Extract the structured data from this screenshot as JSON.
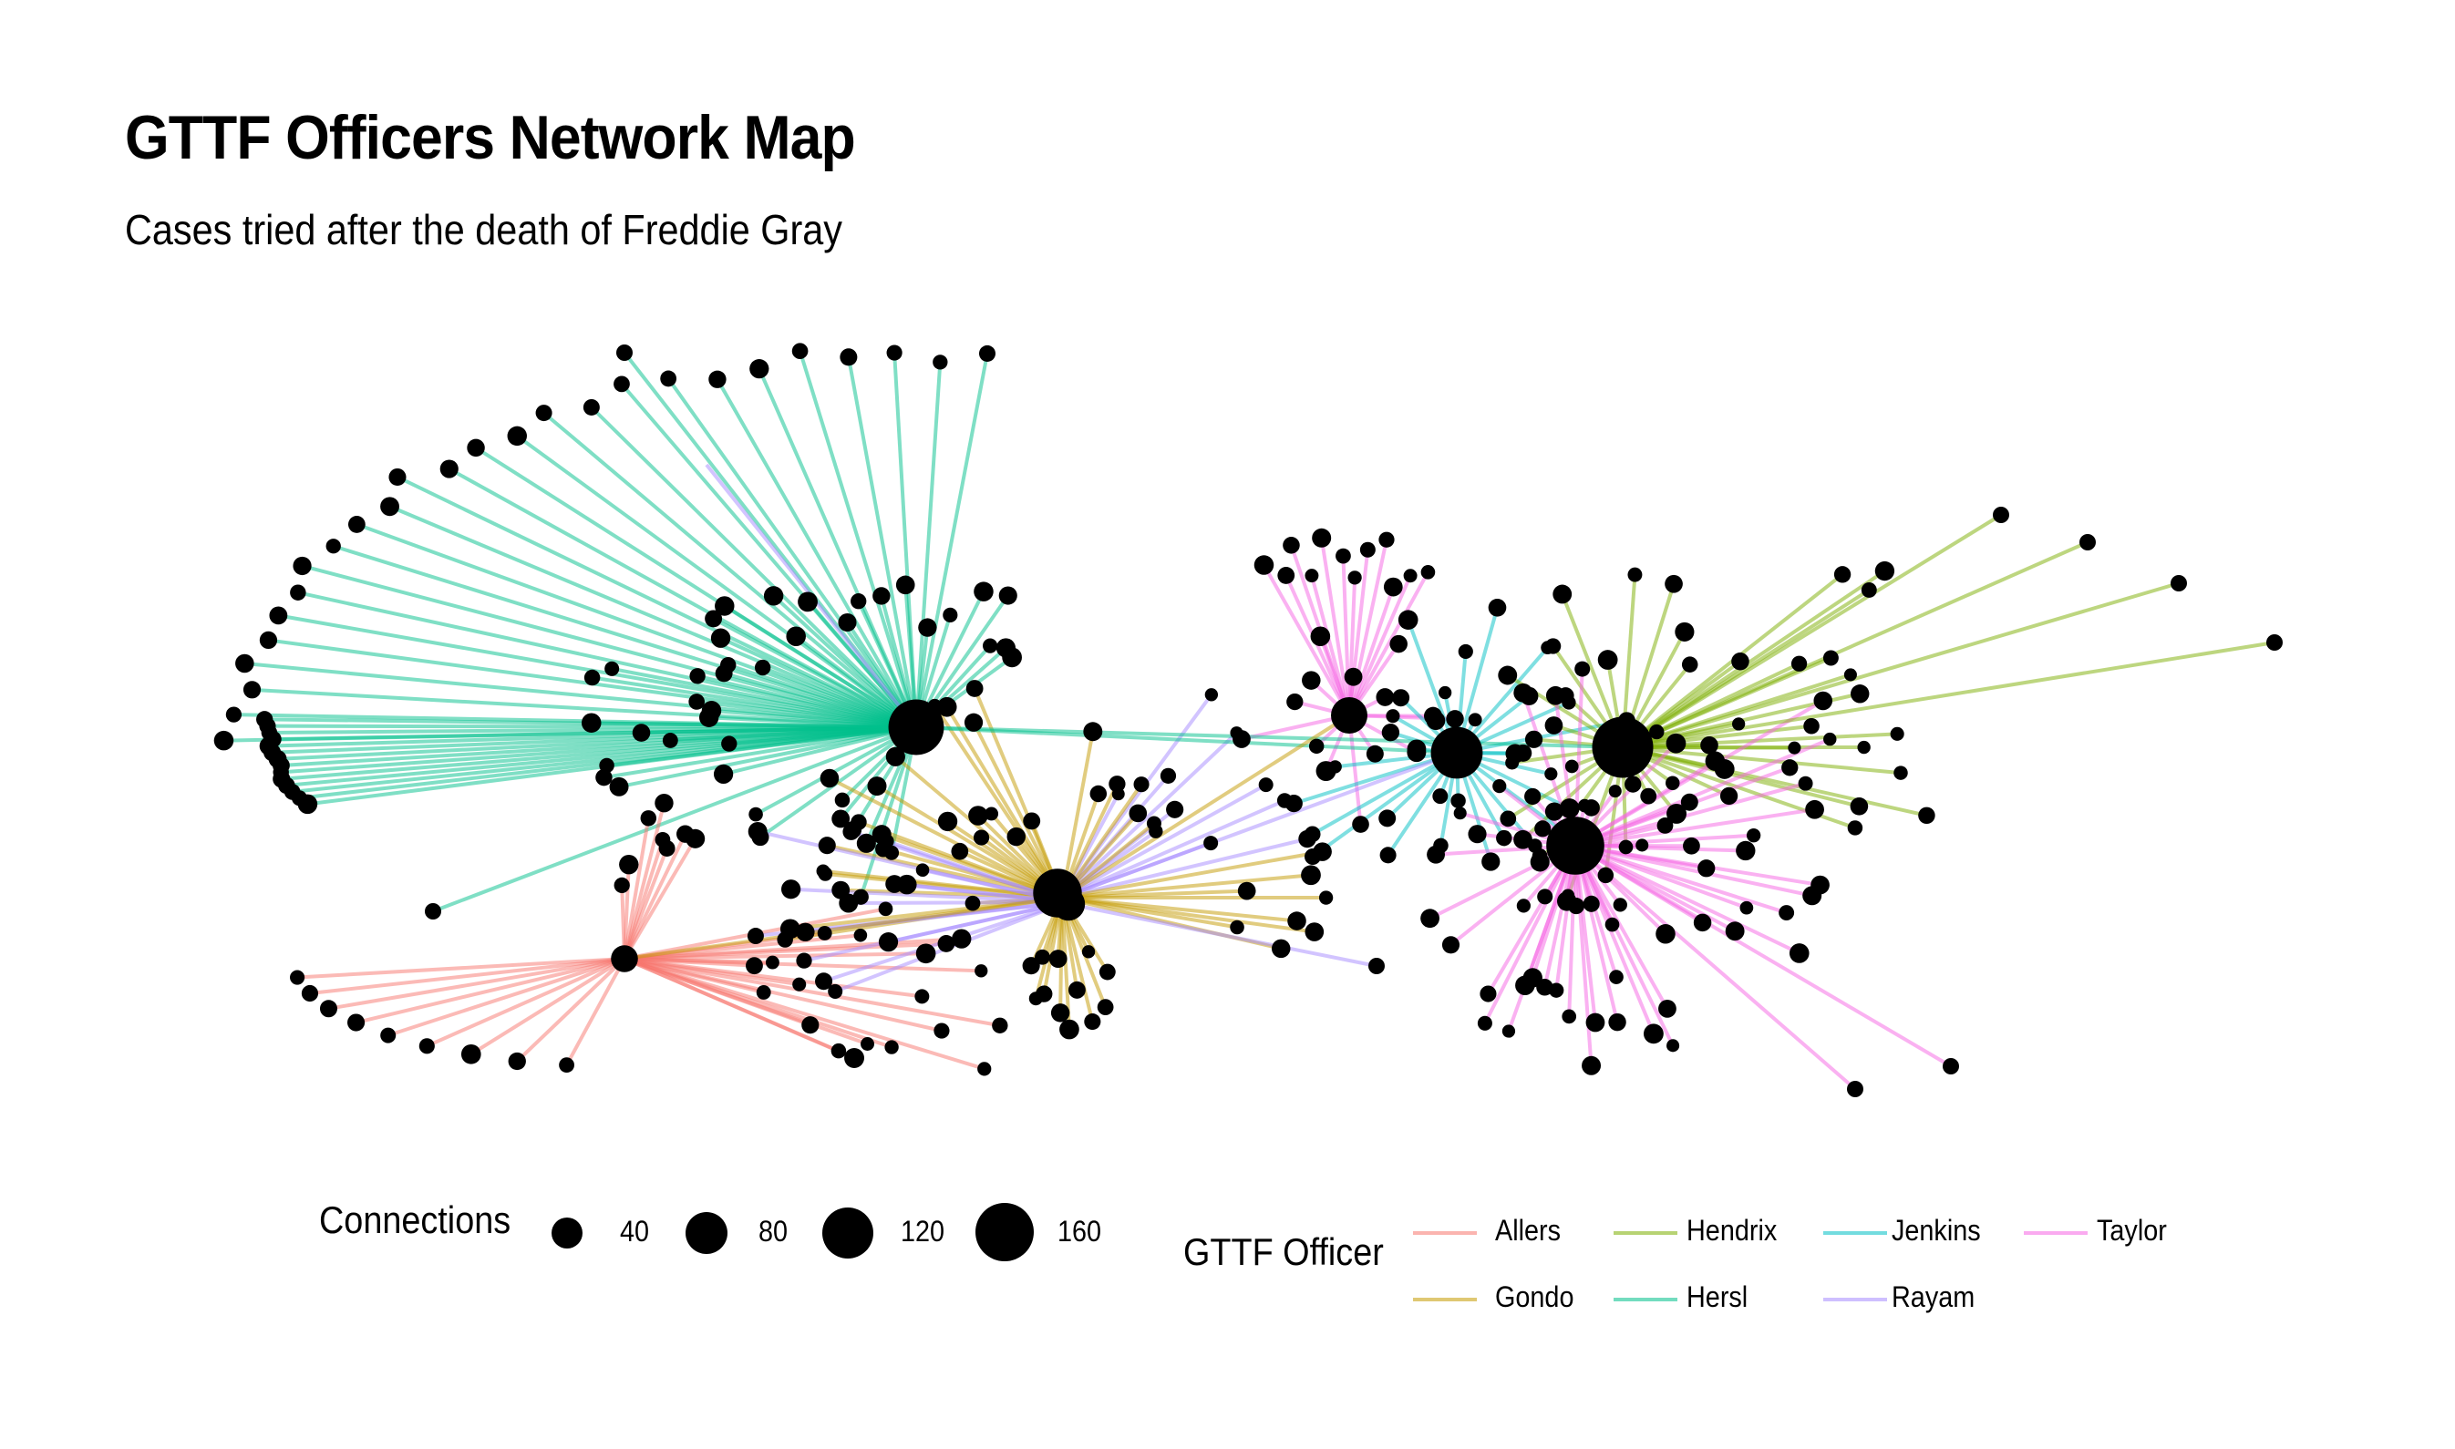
{
  "title": "GTTF Officers Network Map",
  "subtitle": "Cases tried after the death of Freddie Gray",
  "size_legend": {
    "title": "Connections",
    "items": [
      {
        "label": "40",
        "value": 40
      },
      {
        "label": "80",
        "value": 80
      },
      {
        "label": "120",
        "value": 120
      },
      {
        "label": "160",
        "value": 160
      }
    ]
  },
  "color_legend": {
    "title": "GTTF Officer",
    "items": [
      {
        "name": "Allers",
        "color": "#F8766D"
      },
      {
        "name": "Hendrix",
        "color": "#7CAE00"
      },
      {
        "name": "Jenkins",
        "color": "#00BFC4"
      },
      {
        "name": "Taylor",
        "color": "#F564E3"
      },
      {
        "name": "Gondo",
        "color": "#C49A00"
      },
      {
        "name": "Hersl",
        "color": "#00C08B"
      },
      {
        "name": "Rayam",
        "color": "#A58AFF"
      }
    ]
  },
  "officers": [
    {
      "name": "Hersl",
      "connections": 132
    },
    {
      "name": "Allers",
      "connections": 40
    },
    {
      "name": "Gondo",
      "connections": 110
    },
    {
      "name": "Rayam",
      "connections": 60
    },
    {
      "name": "Jenkins",
      "connections": 120
    },
    {
      "name": "Hendrix",
      "connections": 150
    },
    {
      "name": "Taylor",
      "connections": 140
    }
  ]
}
